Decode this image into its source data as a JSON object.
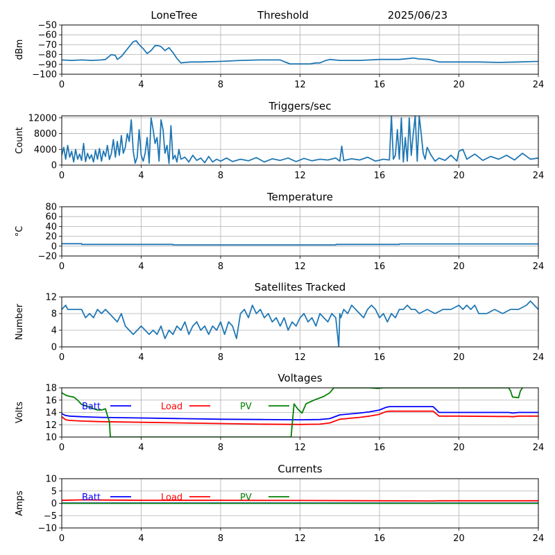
{
  "header": {
    "station": "LoneTree",
    "mode": "Threshold",
    "date": "2025/06/23"
  },
  "colors": {
    "series_default": "#1f77b4",
    "batt": "#0000ff",
    "load": "#ff0000",
    "pv": "#008000",
    "grid": "#b0b0b0"
  },
  "chart_data": [
    {
      "id": "signal",
      "type": "line",
      "title": "",
      "xlabel": "",
      "ylabel": "dBm",
      "xlim": [
        0,
        24
      ],
      "ylim": [
        -100,
        -50
      ],
      "xticks": [
        "0",
        "4",
        "8",
        "12",
        "16",
        "20",
        "24"
      ],
      "yticks": [
        "-50",
        "-60",
        "-70",
        "-80",
        "-90",
        "-100"
      ],
      "grid": true,
      "series": [
        {
          "color": "#1f77b4",
          "x": [
            0,
            0.5,
            1,
            1.5,
            2,
            2.2,
            2.5,
            2.7,
            2.8,
            3.0,
            3.2,
            3.4,
            3.6,
            3.75,
            3.9,
            4.1,
            4.3,
            4.5,
            4.7,
            4.85,
            5.0,
            5.2,
            5.4,
            5.6,
            5.8,
            6.0,
            6.2,
            6.5,
            7,
            8,
            9,
            10,
            11,
            11.3,
            11.5,
            12,
            12.5,
            12.8,
            13.0,
            13.3,
            13.5,
            14,
            15,
            16,
            17,
            17.5,
            17.7,
            18,
            18.5,
            19,
            20,
            21,
            22,
            23,
            24
          ],
          "values": [
            -85.5,
            -86,
            -85.5,
            -86,
            -85.5,
            -85,
            -80,
            -81,
            -85,
            -82,
            -77,
            -72,
            -67,
            -66,
            -70,
            -74,
            -79,
            -76,
            -71,
            -71,
            -72,
            -76,
            -73,
            -78,
            -84,
            -88.5,
            -88,
            -87.5,
            -87.5,
            -87,
            -86,
            -85.5,
            -85.5,
            -88,
            -89.5,
            -89.5,
            -89.5,
            -88.5,
            -88.5,
            -86,
            -85,
            -86,
            -86,
            -85,
            -85,
            -84,
            -83.5,
            -84.5,
            -85,
            -87.5,
            -87.5,
            -87.5,
            -88,
            -87.5,
            -87
          ]
        }
      ]
    },
    {
      "id": "triggers",
      "type": "line",
      "title": "Triggers/sec",
      "xlabel": "",
      "ylabel": "Count",
      "xlim": [
        0,
        24
      ],
      "ylim": [
        0,
        12500
      ],
      "xticks": [
        "0",
        "4",
        "8",
        "12",
        "16",
        "20",
        "24"
      ],
      "yticks": [
        "0",
        "4000",
        "8000",
        "12000"
      ],
      "grid": true,
      "series": [
        {
          "color": "#1f77b4",
          "x": [
            0,
            0.1,
            0.2,
            0.3,
            0.4,
            0.5,
            0.6,
            0.7,
            0.8,
            0.9,
            1.0,
            1.1,
            1.2,
            1.3,
            1.4,
            1.5,
            1.6,
            1.7,
            1.8,
            1.9,
            2.0,
            2.1,
            2.2,
            2.3,
            2.4,
            2.5,
            2.6,
            2.7,
            2.8,
            2.9,
            3.0,
            3.1,
            3.2,
            3.3,
            3.4,
            3.5,
            3.6,
            3.7,
            3.8,
            3.9,
            4.0,
            4.1,
            4.2,
            4.3,
            4.4,
            4.5,
            4.6,
            4.7,
            4.8,
            4.9,
            5.0,
            5.1,
            5.2,
            5.3,
            5.4,
            5.5,
            5.6,
            5.7,
            5.8,
            5.9,
            6.0,
            6.2,
            6.4,
            6.6,
            6.8,
            7.0,
            7.2,
            7.4,
            7.6,
            7.8,
            8.0,
            8.3,
            8.6,
            9.0,
            9.4,
            9.8,
            10.2,
            10.6,
            11.0,
            11.4,
            11.8,
            12.2,
            12.6,
            13.0,
            13.4,
            13.8,
            14.0,
            14.1,
            14.2,
            14.6,
            15.0,
            15.4,
            15.8,
            16.2,
            16.5,
            16.6,
            16.7,
            16.8,
            16.9,
            17.0,
            17.1,
            17.2,
            17.3,
            17.4,
            17.5,
            17.6,
            17.7,
            17.8,
            17.9,
            18.0,
            18.1,
            18.2,
            18.3,
            18.4,
            18.6,
            18.8,
            19.0,
            19.3,
            19.6,
            19.9,
            20.0,
            20.2,
            20.4,
            20.8,
            21.2,
            21.6,
            22.0,
            22.4,
            22.8,
            23.2,
            23.6,
            24.0
          ],
          "values": [
            2500,
            4500,
            1500,
            5000,
            2000,
            3500,
            800,
            4000,
            1500,
            2800,
            1200,
            5500,
            900,
            3000,
            1600,
            2600,
            800,
            3800,
            1500,
            4200,
            1000,
            3600,
            2200,
            5000,
            1400,
            3000,
            6500,
            2000,
            6000,
            2500,
            7500,
            3000,
            4500,
            8000,
            6000,
            11500,
            3500,
            500,
            2000,
            9000,
            2500,
            1000,
            3000,
            7000,
            500,
            12000,
            9000,
            5500,
            7000,
            1000,
            11500,
            9000,
            3000,
            5000,
            400,
            10000,
            1500,
            2500,
            800,
            4000,
            1500,
            2000,
            800,
            2500,
            1200,
            1800,
            600,
            2200,
            800,
            1500,
            1000,
            1800,
            900,
            1500,
            1100,
            1900,
            800,
            1600,
            1200,
            1800,
            900,
            1700,
            1100,
            1500,
            1300,
            1800,
            1000,
            4800,
            1200,
            1600,
            1300,
            2000,
            1000,
            1500,
            1300,
            12500,
            1500,
            2500,
            9000,
            1500,
            12000,
            800,
            7000,
            1000,
            12000,
            2500,
            8000,
            12500,
            1000,
            12500,
            8000,
            3000,
            1500,
            4500,
            2500,
            1000,
            1800,
            1200,
            2500,
            1000,
            3500,
            4000,
            1500,
            2800,
            1200,
            2200,
            1500,
            2500,
            1300,
            3000,
            1500,
            1800
          ]
        }
      ]
    },
    {
      "id": "temperature",
      "type": "line",
      "title": "Temperature",
      "xlabel": "",
      "ylabel": "°C",
      "xlim": [
        0,
        24
      ],
      "ylim": [
        -20,
        80
      ],
      "xticks": [
        "0",
        "4",
        "8",
        "12",
        "16",
        "20",
        "24"
      ],
      "yticks": [
        "-20",
        "0",
        "20",
        "40",
        "60",
        "80"
      ],
      "grid": true,
      "series": [
        {
          "color": "#1f77b4",
          "x": [
            0,
            1,
            1.01,
            5.6,
            5.61,
            13.8,
            13.81,
            17.0,
            17.01,
            24
          ],
          "values": [
            5,
            5,
            3.5,
            3.5,
            2.5,
            2.5,
            3.5,
            3.5,
            4.5,
            4.5
          ]
        }
      ]
    },
    {
      "id": "satellites",
      "type": "line",
      "title": "Satellites Tracked",
      "xlabel": "",
      "ylabel": "Number",
      "xlim": [
        0,
        24
      ],
      "ylim": [
        0,
        12
      ],
      "xticks": [
        "0",
        "4",
        "8",
        "12",
        "16",
        "20",
        "24"
      ],
      "yticks": [
        "0",
        "4",
        "8",
        "12"
      ],
      "grid": true,
      "series": [
        {
          "color": "#1f77b4",
          "x": [
            0,
            0.2,
            0.3,
            0.5,
            1.0,
            1.2,
            1.4,
            1.6,
            1.8,
            2.0,
            2.2,
            2.4,
            2.6,
            2.8,
            3.0,
            3.2,
            3.4,
            3.6,
            3.8,
            4.0,
            4.2,
            4.4,
            4.6,
            4.8,
            5.0,
            5.2,
            5.4,
            5.6,
            5.8,
            6.0,
            6.2,
            6.4,
            6.6,
            6.8,
            7.0,
            7.2,
            7.4,
            7.6,
            7.8,
            8.0,
            8.2,
            8.4,
            8.6,
            8.8,
            9.0,
            9.2,
            9.4,
            9.6,
            9.8,
            10.0,
            10.2,
            10.4,
            10.6,
            10.8,
            11.0,
            11.2,
            11.4,
            11.6,
            11.8,
            12.0,
            12.2,
            12.4,
            12.6,
            12.8,
            13.0,
            13.2,
            13.4,
            13.6,
            13.8,
            13.95,
            14.0,
            14.05,
            14.2,
            14.4,
            14.6,
            14.8,
            15.0,
            15.2,
            15.4,
            15.6,
            15.8,
            16.0,
            16.2,
            16.4,
            16.6,
            16.8,
            17.0,
            17.2,
            17.4,
            17.6,
            17.8,
            18.0,
            18.4,
            18.8,
            19.2,
            19.6,
            20.0,
            20.2,
            20.4,
            20.6,
            20.8,
            21.0,
            21.4,
            21.8,
            22.2,
            22.6,
            23.0,
            23.4,
            23.6,
            23.8,
            24.0
          ],
          "values": [
            9,
            10,
            9,
            9,
            9,
            7,
            8,
            7,
            9,
            8,
            9,
            8,
            7,
            6,
            8,
            5,
            4,
            3,
            4,
            5,
            4,
            3,
            4,
            3,
            5,
            2,
            4,
            3,
            5,
            4,
            6,
            3,
            5,
            6,
            4,
            5,
            3,
            5,
            4,
            6,
            3,
            6,
            5,
            2,
            8,
            9,
            7,
            10,
            8,
            9,
            7,
            8,
            6,
            7,
            5,
            7,
            4,
            6,
            5,
            7,
            8,
            6,
            7,
            5,
            8,
            7,
            6,
            8,
            7,
            0,
            8,
            7,
            9,
            8,
            10,
            9,
            8,
            7,
            9,
            10,
            9,
            7,
            8,
            6,
            8,
            7,
            9,
            9,
            10,
            9,
            9,
            8,
            9,
            8,
            9,
            9,
            10,
            9,
            10,
            9,
            10,
            8,
            8,
            9,
            8,
            9,
            9,
            10,
            11,
            10,
            9
          ]
        }
      ]
    },
    {
      "id": "voltages",
      "type": "line",
      "title": "Voltages",
      "xlabel": "",
      "ylabel": "Volts",
      "xlim": [
        0,
        24
      ],
      "ylim": [
        10,
        18
      ],
      "xticks": [
        "0",
        "4",
        "8",
        "12",
        "16",
        "20",
        "24"
      ],
      "yticks": [
        "10",
        "12",
        "14",
        "16",
        "18"
      ],
      "grid": true,
      "legend": [
        "Batt",
        "Load",
        "PV"
      ],
      "legend_position": "upper",
      "series": [
        {
          "name": "Batt",
          "color": "#0000ff",
          "x": [
            0,
            0.2,
            0.4,
            1,
            2,
            4,
            6,
            8,
            10,
            12,
            13,
            13.5,
            14,
            15,
            15.5,
            16,
            16.3,
            16.5,
            17,
            18,
            18.7,
            19,
            20,
            22,
            22.5,
            22.7,
            23,
            24
          ],
          "values": [
            13.8,
            13.5,
            13.4,
            13.3,
            13.2,
            13.1,
            13.0,
            12.9,
            12.85,
            12.8,
            12.85,
            13.0,
            13.6,
            13.9,
            14.1,
            14.4,
            14.8,
            14.95,
            14.95,
            14.95,
            14.95,
            14.0,
            14.0,
            14.0,
            14.0,
            13.9,
            14.0,
            14.0
          ]
        },
        {
          "name": "Load",
          "color": "#ff0000",
          "x": [
            0,
            0.2,
            0.4,
            1,
            2,
            4,
            6,
            8,
            10,
            12,
            13,
            13.5,
            14,
            15,
            15.5,
            16,
            16.3,
            16.5,
            17,
            18,
            18.7,
            19,
            20,
            22,
            22.5,
            22.7,
            23,
            24
          ],
          "values": [
            13.3,
            12.8,
            12.7,
            12.6,
            12.5,
            12.4,
            12.3,
            12.2,
            12.1,
            12.05,
            12.1,
            12.3,
            12.9,
            13.2,
            13.4,
            13.7,
            14.1,
            14.2,
            14.2,
            14.2,
            14.2,
            13.4,
            13.4,
            13.35,
            13.35,
            13.3,
            13.4,
            13.4
          ]
        },
        {
          "name": "PV",
          "color": "#008000",
          "x": [
            0,
            0.2,
            0.4,
            0.6,
            0.8,
            1.0,
            1.3,
            1.6,
            1.8,
            2.0,
            2.2,
            2.3,
            2.4,
            2.45,
            11.55,
            11.6,
            11.7,
            11.9,
            12.1,
            12.3,
            12.7,
            13.2,
            13.5,
            13.7,
            14.0,
            15.5,
            15.9,
            16.2,
            22.5,
            22.6,
            22.7,
            23.0,
            23.1,
            23.2
          ],
          "values": [
            17.2,
            16.8,
            16.6,
            16.5,
            16.0,
            15.3,
            15.0,
            14.6,
            14.4,
            14.4,
            14.6,
            13.5,
            12.5,
            10.0,
            10.0,
            12.0,
            15.4,
            14.5,
            13.9,
            15.4,
            16.0,
            16.6,
            17.2,
            18.0,
            18.0,
            18.0,
            17.9,
            18.0,
            18.0,
            17.5,
            16.5,
            16.4,
            17.5,
            18.0
          ]
        }
      ]
    },
    {
      "id": "currents",
      "type": "line",
      "title": "Currents",
      "xlabel": "",
      "ylabel": "Amps",
      "xlim": [
        0,
        24
      ],
      "ylim": [
        -10,
        10
      ],
      "xticks": [
        "0",
        "4",
        "8",
        "12",
        "16",
        "20",
        "24"
      ],
      "yticks": [
        "-10",
        "-5",
        "0",
        "5",
        "10"
      ],
      "grid": true,
      "legend": [
        "Batt",
        "Load",
        "PV"
      ],
      "legend_position": "upper",
      "series": [
        {
          "name": "Batt",
          "color": "#0000ff",
          "x": [
            0,
            24
          ],
          "values": [
            0.1,
            0.1
          ]
        },
        {
          "name": "Load",
          "color": "#ff0000",
          "x": [
            0,
            1,
            4,
            8,
            12,
            16,
            18.7,
            19,
            24
          ],
          "values": [
            1.2,
            1.4,
            1.2,
            1.2,
            1.15,
            1.05,
            0.95,
            1.05,
            1.05
          ]
        },
        {
          "name": "PV",
          "color": "#008000",
          "x": [
            0,
            24
          ],
          "values": [
            0,
            0
          ]
        }
      ]
    }
  ]
}
